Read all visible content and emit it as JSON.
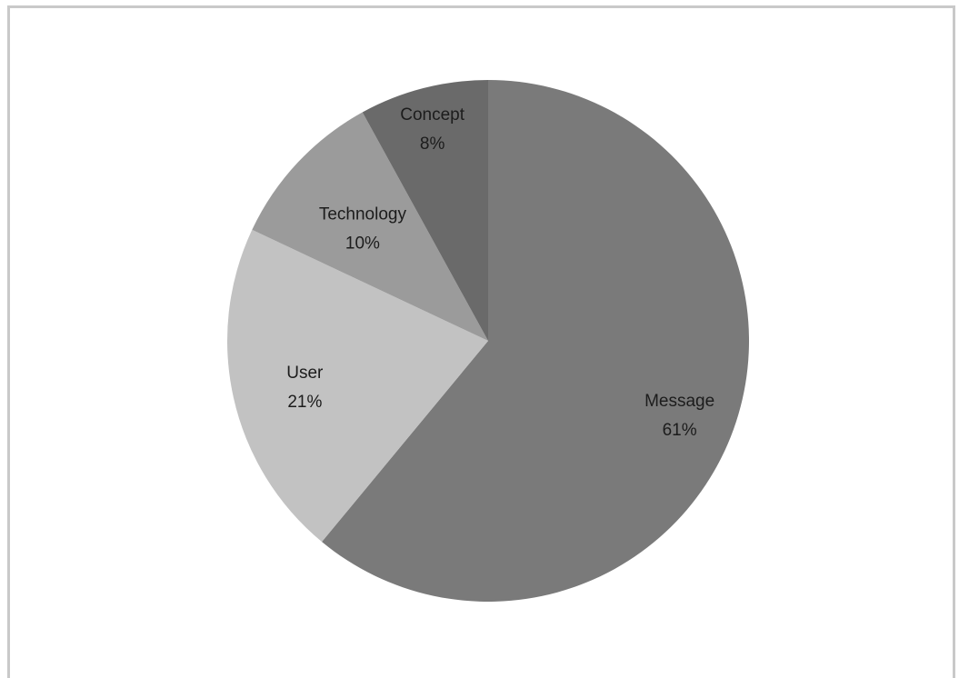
{
  "chart_data": {
    "type": "pie",
    "title": "",
    "slices": [
      {
        "label": "Message",
        "value": 61,
        "value_label": "61%",
        "color": "#7a7a7a"
      },
      {
        "label": "User",
        "value": 21,
        "value_label": "21%",
        "color": "#c2c2c2"
      },
      {
        "label": "Technology",
        "value": 10,
        "value_label": "10%",
        "color": "#9b9b9b"
      },
      {
        "label": "Concept",
        "value": 8,
        "value_label": "8%",
        "color": "#6a6a6a"
      }
    ],
    "start_angle": "12 o'clock",
    "direction": "clockwise",
    "legend": "none",
    "labels": "inside slices"
  }
}
